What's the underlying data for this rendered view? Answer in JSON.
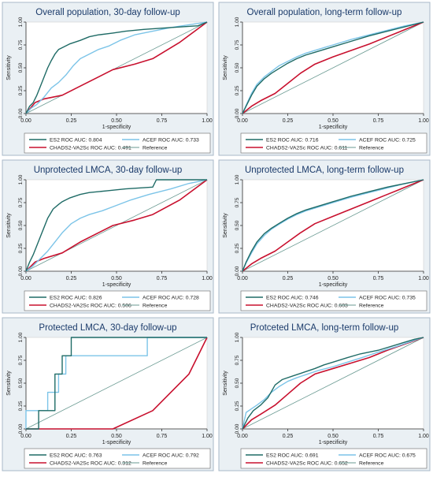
{
  "colors": {
    "es2": "#1f6b66",
    "acef": "#7cc4e8",
    "chads": "#c8102e",
    "reference": "#6a9a92",
    "panel_border": "#a8b8c8",
    "panel_bg": "#eaf0f4",
    "plot_bg": "#ffffff",
    "title_color": "#1a3a6a"
  },
  "chart_data": [
    {
      "type": "line",
      "title": "Overall population, 30-day follow-up",
      "xlabel": "1-specificity",
      "ylabel": "Sensitivity",
      "xlim": [
        0,
        1
      ],
      "ylim": [
        0,
        1
      ],
      "xticks": [
        "0.00",
        "0.25",
        "0.50",
        "0.75",
        "1.00"
      ],
      "yticks": [
        "0.00",
        "0.25",
        "0.50",
        "0.75",
        "1.00"
      ],
      "grid": false,
      "legend": [
        "ES2 ROC AUC: 0.804",
        "ACEF ROC AUC: 0.733",
        "CHADS2-VA2Sc ROC AUC: 0.491",
        "Reference"
      ],
      "legend_position": "bottom",
      "series": [
        {
          "name": "ES2 ROC AUC: 0.804",
          "key": "es2",
          "x": [
            0,
            0.02,
            0.04,
            0.06,
            0.08,
            0.1,
            0.12,
            0.14,
            0.16,
            0.18,
            0.2,
            0.24,
            0.3,
            0.35,
            0.4,
            0.48,
            0.55,
            0.65,
            0.8,
            0.95,
            1.0
          ],
          "y": [
            0,
            0.08,
            0.12,
            0.2,
            0.3,
            0.4,
            0.5,
            0.58,
            0.65,
            0.7,
            0.72,
            0.76,
            0.8,
            0.84,
            0.86,
            0.88,
            0.9,
            0.92,
            0.94,
            0.96,
            1.0
          ]
        },
        {
          "name": "ACEF ROC AUC: 0.733",
          "key": "acef",
          "x": [
            0,
            0.03,
            0.06,
            0.1,
            0.14,
            0.18,
            0.22,
            0.26,
            0.3,
            0.34,
            0.4,
            0.46,
            0.52,
            0.6,
            0.7,
            0.8,
            0.9,
            1.0
          ],
          "y": [
            0,
            0.06,
            0.1,
            0.18,
            0.28,
            0.34,
            0.42,
            0.52,
            0.6,
            0.64,
            0.7,
            0.74,
            0.8,
            0.86,
            0.9,
            0.94,
            0.97,
            1.0
          ]
        },
        {
          "name": "CHADS2-VA2Sc ROC AUC: 0.491",
          "key": "chads",
          "x": [
            0,
            0.05,
            0.1,
            0.2,
            0.3,
            0.48,
            0.6,
            0.7,
            0.85,
            1.0
          ],
          "y": [
            0,
            0.12,
            0.16,
            0.2,
            0.3,
            0.48,
            0.54,
            0.6,
            0.78,
            1.0
          ]
        },
        {
          "name": "Reference",
          "key": "reference",
          "x": [
            0,
            1
          ],
          "y": [
            0,
            1
          ]
        }
      ]
    },
    {
      "type": "line",
      "title": "Overall population, long-term follow-up",
      "xlabel": "1-specificity",
      "ylabel": "Sensitivity",
      "xlim": [
        0,
        1
      ],
      "ylim": [
        0,
        1
      ],
      "xticks": [
        "0.00",
        "0.25",
        "0.50",
        "0.75",
        "1.00"
      ],
      "yticks": [
        "0.00",
        "0.25",
        "0.50",
        "0.75",
        "1.00"
      ],
      "grid": false,
      "legend": [
        "ES2 ROC AUC: 0.716",
        "ACEF ROC AUC: 0.725",
        "CHADS2-VA2Sc ROC AUC: 0.611",
        "Reference"
      ],
      "legend_position": "bottom",
      "series": [
        {
          "name": "ES2 ROC AUC: 0.716",
          "key": "es2",
          "x": [
            0,
            0.02,
            0.05,
            0.08,
            0.12,
            0.16,
            0.2,
            0.25,
            0.3,
            0.35,
            0.4,
            0.45,
            0.5,
            0.6,
            0.7,
            0.8,
            0.9,
            1.0
          ],
          "y": [
            0,
            0.08,
            0.2,
            0.3,
            0.38,
            0.44,
            0.49,
            0.55,
            0.6,
            0.64,
            0.67,
            0.7,
            0.73,
            0.79,
            0.85,
            0.9,
            0.95,
            1.0
          ]
        },
        {
          "name": "ACEF ROC AUC: 0.725",
          "key": "acef",
          "x": [
            0,
            0.02,
            0.05,
            0.08,
            0.12,
            0.16,
            0.2,
            0.25,
            0.3,
            0.35,
            0.4,
            0.45,
            0.5,
            0.6,
            0.7,
            0.8,
            0.9,
            1.0
          ],
          "y": [
            0,
            0.09,
            0.22,
            0.32,
            0.4,
            0.46,
            0.52,
            0.57,
            0.62,
            0.66,
            0.69,
            0.72,
            0.75,
            0.81,
            0.86,
            0.91,
            0.96,
            1.0
          ]
        },
        {
          "name": "CHADS2-VA2Sc ROC AUC: 0.611",
          "key": "chads",
          "x": [
            0,
            0.05,
            0.1,
            0.18,
            0.25,
            0.32,
            0.4,
            0.5,
            0.6,
            0.7,
            0.8,
            0.9,
            1.0
          ],
          "y": [
            0,
            0.08,
            0.14,
            0.22,
            0.33,
            0.44,
            0.54,
            0.62,
            0.69,
            0.76,
            0.84,
            0.92,
            1.0
          ]
        },
        {
          "name": "Reference",
          "key": "reference",
          "x": [
            0,
            1
          ],
          "y": [
            0,
            1
          ]
        }
      ]
    },
    {
      "type": "line",
      "title": "Unprotected LMCA, 30-day follow-up",
      "xlabel": "1-specificity",
      "ylabel": "Sensitivity",
      "xlim": [
        0,
        1
      ],
      "ylim": [
        0,
        1
      ],
      "xticks": [
        "0.00",
        "0.25",
        "0.50",
        "0.75",
        "1.00"
      ],
      "yticks": [
        "0.00",
        "0.25",
        "0.50",
        "0.75",
        "1.00"
      ],
      "grid": false,
      "legend": [
        "ES2 ROC AUC: 0.826",
        "ACEF ROC AUC: 0.728",
        "CHADS2-VA2Sc ROC AUC: 0.506",
        "Reference"
      ],
      "legend_position": "bottom",
      "series": [
        {
          "name": "ES2 ROC AUC: 0.826",
          "key": "es2",
          "x": [
            0,
            0.02,
            0.04,
            0.06,
            0.08,
            0.1,
            0.12,
            0.15,
            0.18,
            0.2,
            0.24,
            0.3,
            0.35,
            0.45,
            0.55,
            0.7,
            0.72,
            0.85,
            1.0
          ],
          "y": [
            0,
            0.1,
            0.18,
            0.28,
            0.38,
            0.48,
            0.58,
            0.68,
            0.73,
            0.76,
            0.8,
            0.84,
            0.86,
            0.88,
            0.9,
            0.92,
            1.0,
            1.0,
            1.0
          ]
        },
        {
          "name": "ACEF ROC AUC: 0.728",
          "key": "acef",
          "x": [
            0,
            0.04,
            0.08,
            0.12,
            0.16,
            0.2,
            0.25,
            0.3,
            0.35,
            0.42,
            0.5,
            0.58,
            0.68,
            0.8,
            0.9,
            1.0
          ],
          "y": [
            0,
            0.06,
            0.14,
            0.22,
            0.32,
            0.42,
            0.52,
            0.58,
            0.62,
            0.66,
            0.72,
            0.78,
            0.84,
            0.9,
            0.96,
            1.0
          ]
        },
        {
          "name": "CHADS2-VA2Sc ROC AUC: 0.506",
          "key": "chads",
          "x": [
            0,
            0.05,
            0.1,
            0.2,
            0.3,
            0.48,
            0.6,
            0.7,
            0.85,
            1.0
          ],
          "y": [
            0,
            0.1,
            0.14,
            0.2,
            0.32,
            0.5,
            0.56,
            0.62,
            0.78,
            1.0
          ]
        },
        {
          "name": "Reference",
          "key": "reference",
          "x": [
            0,
            1
          ],
          "y": [
            0,
            1
          ]
        }
      ]
    },
    {
      "type": "line",
      "title": "Unprotected LMCA, long-term follow-up",
      "xlabel": "1-specificity",
      "ylabel": "Sensitivity",
      "xlim": [
        0,
        1
      ],
      "ylim": [
        0,
        1
      ],
      "xticks": [
        "0.00",
        "0.25",
        "0.50",
        "0.75",
        "1.00"
      ],
      "yticks": [
        "0.00",
        "0.25",
        "0.50",
        "0.75",
        "1.00"
      ],
      "grid": false,
      "legend": [
        "ES2 ROC AUC: 0.746",
        "ACEF ROC AUC: 0.735",
        "CHADS2-VA2Sc ROC AUC: 0.603",
        "Reference"
      ],
      "legend_position": "bottom",
      "series": [
        {
          "name": "ES2 ROC AUC: 0.746",
          "key": "es2",
          "x": [
            0,
            0.02,
            0.05,
            0.08,
            0.12,
            0.16,
            0.2,
            0.25,
            0.3,
            0.35,
            0.4,
            0.45,
            0.5,
            0.6,
            0.7,
            0.8,
            0.9,
            1.0
          ],
          "y": [
            0,
            0.1,
            0.22,
            0.32,
            0.41,
            0.47,
            0.52,
            0.58,
            0.63,
            0.67,
            0.7,
            0.73,
            0.76,
            0.82,
            0.87,
            0.92,
            0.96,
            1.0
          ]
        },
        {
          "name": "ACEF ROC AUC: 0.735",
          "key": "acef",
          "x": [
            0,
            0.02,
            0.05,
            0.08,
            0.12,
            0.16,
            0.2,
            0.25,
            0.3,
            0.35,
            0.4,
            0.45,
            0.5,
            0.6,
            0.7,
            0.8,
            0.9,
            1.0
          ],
          "y": [
            0,
            0.09,
            0.2,
            0.3,
            0.39,
            0.46,
            0.51,
            0.57,
            0.62,
            0.66,
            0.69,
            0.72,
            0.75,
            0.81,
            0.86,
            0.91,
            0.96,
            1.0
          ]
        },
        {
          "name": "CHADS2-VA2Sc ROC AUC: 0.603",
          "key": "chads",
          "x": [
            0,
            0.05,
            0.1,
            0.18,
            0.25,
            0.32,
            0.4,
            0.5,
            0.6,
            0.7,
            0.8,
            0.9,
            1.0
          ],
          "y": [
            0,
            0.08,
            0.14,
            0.22,
            0.32,
            0.42,
            0.52,
            0.6,
            0.68,
            0.76,
            0.84,
            0.92,
            1.0
          ]
        },
        {
          "name": "Reference",
          "key": "reference",
          "x": [
            0,
            1
          ],
          "y": [
            0,
            1
          ]
        }
      ]
    },
    {
      "type": "line",
      "title": "Protected LMCA, 30-day follow-up",
      "xlabel": "1-specificity",
      "ylabel": "Sensitivity",
      "xlim": [
        0,
        1
      ],
      "ylim": [
        0,
        1
      ],
      "xticks": [
        "0.00",
        "0.25",
        "0.50",
        "0.75",
        "1.00"
      ],
      "yticks": [
        "0.00",
        "0.25",
        "0.50",
        "0.75",
        "1.00"
      ],
      "grid": false,
      "legend": [
        "ES2 ROC AUC: 0.763",
        "ACEF ROC AUC: 0.792",
        "CHADS2-VA2Sc ROC AUC: 0.312",
        "Reference"
      ],
      "legend_position": "bottom",
      "series": [
        {
          "name": "ES2 ROC AUC: 0.763",
          "key": "es2",
          "x": [
            0,
            0.07,
            0.07,
            0.16,
            0.16,
            0.2,
            0.2,
            0.25,
            0.25,
            1.0
          ],
          "y": [
            0,
            0,
            0.2,
            0.2,
            0.6,
            0.6,
            0.8,
            0.8,
            1.0,
            1.0
          ]
        },
        {
          "name": "ACEF ROC AUC: 0.792",
          "key": "acef",
          "x": [
            0,
            0,
            0.12,
            0.12,
            0.18,
            0.18,
            0.22,
            0.22,
            0.67,
            0.67,
            1.0
          ],
          "y": [
            0,
            0.2,
            0.2,
            0.4,
            0.4,
            0.6,
            0.6,
            0.8,
            0.8,
            1.0,
            1.0
          ]
        },
        {
          "name": "CHADS2-VA2Sc ROC AUC: 0.312",
          "key": "chads",
          "x": [
            0,
            0.48,
            0.7,
            0.9,
            1.0
          ],
          "y": [
            0,
            0,
            0.2,
            0.6,
            1.0
          ]
        },
        {
          "name": "Reference",
          "key": "reference",
          "x": [
            0,
            1
          ],
          "y": [
            0,
            1
          ]
        }
      ]
    },
    {
      "type": "line",
      "title": "Protceted LMCA, long-term follow-up",
      "xlabel": "1-specificity",
      "ylabel": "Sensitivity",
      "xlim": [
        0,
        1
      ],
      "ylim": [
        0,
        1
      ],
      "xticks": [
        "0.00",
        "0.25",
        "0.50",
        "0.75",
        "1.00"
      ],
      "yticks": [
        "0.00",
        "0.25",
        "0.50",
        "0.75",
        "1.00"
      ],
      "grid": false,
      "legend": [
        "ES2 ROC AUC: 0.691",
        "ACEF ROC AUC: 0.675",
        "CHADS2-VA2Sc ROC AUC: 0.652",
        "Reference"
      ],
      "legend_position": "bottom",
      "series": [
        {
          "name": "ES2 ROC AUC: 0.691",
          "key": "es2",
          "x": [
            0,
            0.03,
            0.06,
            0.1,
            0.14,
            0.18,
            0.22,
            0.28,
            0.34,
            0.4,
            0.45,
            0.5,
            0.58,
            0.65,
            0.75,
            0.85,
            0.95,
            1.0
          ],
          "y": [
            0,
            0.12,
            0.2,
            0.26,
            0.34,
            0.48,
            0.54,
            0.58,
            0.62,
            0.66,
            0.7,
            0.73,
            0.78,
            0.82,
            0.86,
            0.92,
            0.98,
            1.0
          ]
        },
        {
          "name": "ACEF ROC AUC: 0.675",
          "key": "acef",
          "x": [
            0,
            0.02,
            0.05,
            0.08,
            0.12,
            0.16,
            0.2,
            0.25,
            0.3,
            0.36,
            0.42,
            0.5,
            0.58,
            0.66,
            0.75,
            0.85,
            0.95,
            1.0
          ],
          "y": [
            0,
            0.18,
            0.22,
            0.26,
            0.32,
            0.4,
            0.46,
            0.52,
            0.56,
            0.6,
            0.64,
            0.68,
            0.73,
            0.78,
            0.84,
            0.9,
            0.97,
            1.0
          ]
        },
        {
          "name": "CHADS2-VA2Sc ROC AUC: 0.652",
          "key": "chads",
          "x": [
            0,
            0.05,
            0.1,
            0.18,
            0.25,
            0.32,
            0.4,
            0.5,
            0.6,
            0.7,
            0.8,
            0.9,
            1.0
          ],
          "y": [
            0,
            0.1,
            0.16,
            0.26,
            0.38,
            0.5,
            0.6,
            0.66,
            0.72,
            0.78,
            0.86,
            0.93,
            1.0
          ]
        },
        {
          "name": "Reference",
          "key": "reference",
          "x": [
            0,
            1
          ],
          "y": [
            0,
            1
          ]
        }
      ]
    }
  ]
}
